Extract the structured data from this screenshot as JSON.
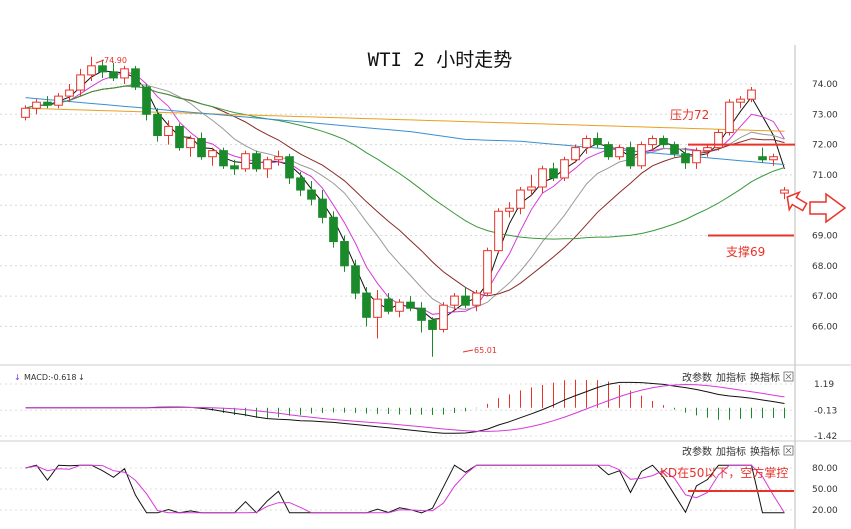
{
  "chart_data": {
    "type": "candlestick",
    "title": "WTI 2 小时走势",
    "main": {
      "ylim": [
        65.0,
        75.2
      ],
      "y_ticks": [
        "74.00",
        "73.00",
        "72.00",
        "71.00",
        "70.00",
        "69.00",
        "68.00",
        "67.00",
        "66.00"
      ],
      "ohlc": [
        [
          72.9,
          73.3,
          72.8,
          73.2
        ],
        [
          73.2,
          73.5,
          73.0,
          73.4
        ],
        [
          73.4,
          73.6,
          73.2,
          73.3
        ],
        [
          73.3,
          73.7,
          73.2,
          73.6
        ],
        [
          73.6,
          74.0,
          73.4,
          73.8
        ],
        [
          73.8,
          74.5,
          73.6,
          74.3
        ],
        [
          74.3,
          74.9,
          74.1,
          74.6
        ],
        [
          74.6,
          74.8,
          74.2,
          74.4
        ],
        [
          74.4,
          74.7,
          74.1,
          74.2
        ],
        [
          74.2,
          74.6,
          74.0,
          74.5
        ],
        [
          74.5,
          74.6,
          73.8,
          73.9
        ],
        [
          73.9,
          74.0,
          72.8,
          73.0
        ],
        [
          73.0,
          73.2,
          72.1,
          72.3
        ],
        [
          72.3,
          72.8,
          72.0,
          72.6
        ],
        [
          72.6,
          72.7,
          71.8,
          71.9
        ],
        [
          71.9,
          72.3,
          71.6,
          72.2
        ],
        [
          72.2,
          72.4,
          71.5,
          71.6
        ],
        [
          71.6,
          71.9,
          71.3,
          71.8
        ],
        [
          71.8,
          71.9,
          71.2,
          71.3
        ],
        [
          71.3,
          71.5,
          71.0,
          71.2
        ],
        [
          71.2,
          71.8,
          71.1,
          71.7
        ],
        [
          71.7,
          71.8,
          71.1,
          71.2
        ],
        [
          71.2,
          71.6,
          70.9,
          71.5
        ],
        [
          71.5,
          71.8,
          71.3,
          71.6
        ],
        [
          71.6,
          71.7,
          70.7,
          70.9
        ],
        [
          70.9,
          71.1,
          70.3,
          70.5
        ],
        [
          70.5,
          70.8,
          70.0,
          70.2
        ],
        [
          70.2,
          70.5,
          69.4,
          69.6
        ],
        [
          69.6,
          69.8,
          68.6,
          68.8
        ],
        [
          68.8,
          69.0,
          67.8,
          68.0
        ],
        [
          68.0,
          68.2,
          66.9,
          67.1
        ],
        [
          67.1,
          67.3,
          66.0,
          66.3
        ],
        [
          66.3,
          67.2,
          65.6,
          66.9
        ],
        [
          66.9,
          67.1,
          66.4,
          66.5
        ],
        [
          66.5,
          66.9,
          66.3,
          66.8
        ],
        [
          66.8,
          67.0,
          66.5,
          66.6
        ],
        [
          66.6,
          66.8,
          65.8,
          66.2
        ],
        [
          66.2,
          66.3,
          65.0,
          65.9
        ],
        [
          65.9,
          66.8,
          65.8,
          66.7
        ],
        [
          66.7,
          67.1,
          66.5,
          67.0
        ],
        [
          67.0,
          67.3,
          66.6,
          66.7
        ],
        [
          66.7,
          67.2,
          66.5,
          67.1
        ],
        [
          67.1,
          68.6,
          67.0,
          68.5
        ],
        [
          68.5,
          69.9,
          68.4,
          69.8
        ],
        [
          69.8,
          70.1,
          69.6,
          69.9
        ],
        [
          69.9,
          70.6,
          69.7,
          70.5
        ],
        [
          70.5,
          71.0,
          70.3,
          70.6
        ],
        [
          70.6,
          71.3,
          70.4,
          71.2
        ],
        [
          71.2,
          71.4,
          70.8,
          70.9
        ],
        [
          70.9,
          71.6,
          70.8,
          71.5
        ],
        [
          71.5,
          72.0,
          71.4,
          71.9
        ],
        [
          71.9,
          72.3,
          71.7,
          72.2
        ],
        [
          72.2,
          72.4,
          71.9,
          72.0
        ],
        [
          72.0,
          72.1,
          71.5,
          71.6
        ],
        [
          71.6,
          72.0,
          71.5,
          71.9
        ],
        [
          71.9,
          72.1,
          71.2,
          71.3
        ],
        [
          71.3,
          72.1,
          71.2,
          72.0
        ],
        [
          72.0,
          72.3,
          71.8,
          72.2
        ],
        [
          72.2,
          72.3,
          71.9,
          72.0
        ],
        [
          72.0,
          72.1,
          71.6,
          71.7
        ],
        [
          71.7,
          71.9,
          71.2,
          71.4
        ],
        [
          71.4,
          71.9,
          71.2,
          71.8
        ],
        [
          71.8,
          72.0,
          71.6,
          71.9
        ],
        [
          71.9,
          72.5,
          71.8,
          72.4
        ],
        [
          72.4,
          73.5,
          72.3,
          73.4
        ],
        [
          73.4,
          73.6,
          73.2,
          73.5
        ],
        [
          73.5,
          73.9,
          73.4,
          73.8
        ],
        [
          71.6,
          71.9,
          71.4,
          71.5
        ],
        [
          71.5,
          71.7,
          71.3,
          71.6
        ],
        [
          70.4,
          70.6,
          70.2,
          70.5
        ]
      ],
      "high_label": "74.90",
      "low_label": "65.01",
      "pressure_label": "压力72",
      "pressure_level": 72.0,
      "support_label": "支撑69",
      "support_level": 69.0
    },
    "macd": {
      "label": "MACD:-0.618",
      "ylim": [
        -1.42,
        1.19
      ],
      "y_ticks": [
        "1.19",
        "-0.13",
        "-1.42"
      ]
    },
    "kd": {
      "ylim": [
        20,
        80
      ],
      "y_ticks": [
        "80.00",
        "50.00",
        "20.00"
      ],
      "annotation": "KD在50以下，空方掌控",
      "level": 50
    },
    "colors": {
      "up": "#e8332a",
      "down": "#1a8a2a",
      "annotation": "#e8332a",
      "ma_black": "#111111",
      "ma_magenta": "#d63ad8",
      "ma_gray": "#9a9a9a",
      "ma_brown": "#8a2a2a",
      "ma_blue": "#3a8fd0",
      "ma_green": "#3a9a3a",
      "ma_orange": "#e6a020"
    }
  },
  "panel_buttons": {
    "change_params": "改参数",
    "add_indicator": "加指标",
    "switch_indicator": "换指标"
  }
}
